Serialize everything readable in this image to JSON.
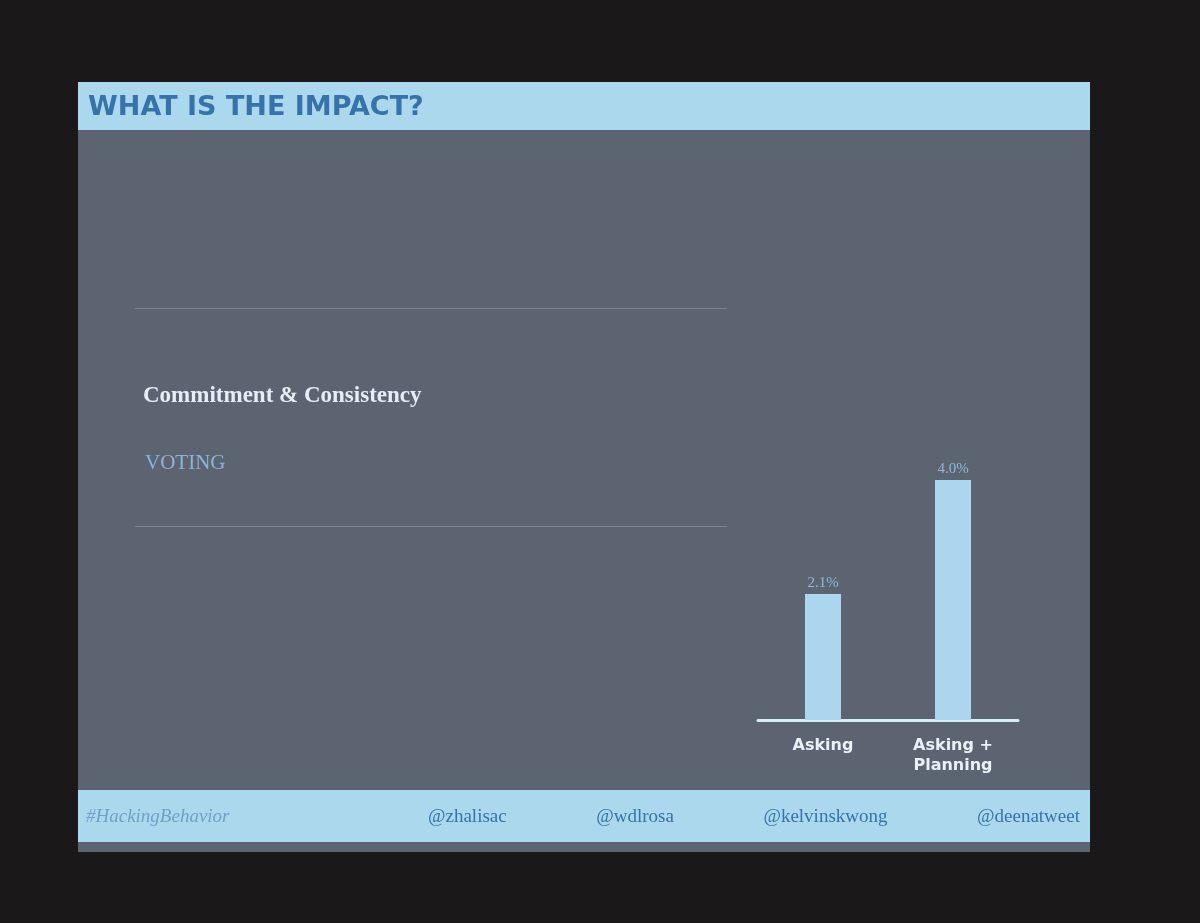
{
  "chart_data": {
    "type": "bar",
    "title": "WHAT IS THE IMPACT?",
    "categories": [
      "Asking",
      "Asking +\nPlanning"
    ],
    "values": [
      2.1,
      4.0
    ],
    "value_labels": [
      "2.1%",
      "4.0%"
    ],
    "color": "#acd6ee",
    "grid": false,
    "annotations": [
      "Commitment & Consistency",
      "VOTING",
      "#HackingBehavior",
      "@zhalisac",
      "@wdlrosa",
      "@kelvinskwong",
      "@deenatweet"
    ]
  }
}
